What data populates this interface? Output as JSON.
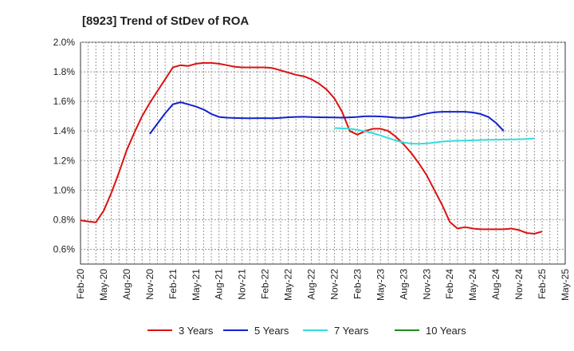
{
  "chart_data": {
    "type": "line",
    "title": "[8923]  Trend of StDev of ROA",
    "xlabel": "",
    "ylabel": "",
    "x_ticks": [
      "Feb-20",
      "May-20",
      "Aug-20",
      "Nov-20",
      "Feb-21",
      "May-21",
      "Aug-21",
      "Nov-21",
      "Feb-22",
      "May-22",
      "Aug-22",
      "Nov-22",
      "Feb-23",
      "May-23",
      "Aug-23",
      "Nov-23",
      "Feb-24",
      "May-24",
      "Aug-24",
      "Nov-24",
      "Feb-25",
      "May-25"
    ],
    "y_ticks": [
      "0.6%",
      "0.8%",
      "1.0%",
      "1.2%",
      "1.4%",
      "1.6%",
      "1.8%",
      "2.0%"
    ],
    "ylim": [
      0.5,
      2.0
    ],
    "grid": true,
    "legend_position": "bottom",
    "series": [
      {
        "name": "3 Years",
        "color": "#dd1111",
        "start_month": 0,
        "values": [
          0.795,
          0.788,
          0.782,
          0.86,
          0.98,
          1.12,
          1.27,
          1.39,
          1.5,
          1.59,
          1.67,
          1.75,
          1.83,
          1.845,
          1.84,
          1.855,
          1.86,
          1.86,
          1.855,
          1.845,
          1.835,
          1.83,
          1.83,
          1.83,
          1.83,
          1.825,
          1.81,
          1.795,
          1.78,
          1.77,
          1.75,
          1.72,
          1.68,
          1.62,
          1.53,
          1.4,
          1.375,
          1.4,
          1.415,
          1.415,
          1.4,
          1.36,
          1.31,
          1.25,
          1.18,
          1.1,
          1.0,
          0.9,
          0.785,
          0.74,
          0.75,
          0.74,
          0.735,
          0.735,
          0.735,
          0.735,
          0.74,
          0.73,
          0.71,
          0.705,
          0.72
        ]
      },
      {
        "name": "5 Years",
        "color": "#1122cc",
        "start_month": 9,
        "values": [
          1.38,
          1.45,
          1.52,
          1.58,
          1.595,
          1.58,
          1.565,
          1.545,
          1.515,
          1.495,
          1.49,
          1.488,
          1.487,
          1.486,
          1.487,
          1.487,
          1.486,
          1.489,
          1.493,
          1.495,
          1.496,
          1.494,
          1.493,
          1.492,
          1.491,
          1.49,
          1.492,
          1.495,
          1.5,
          1.5,
          1.498,
          1.495,
          1.49,
          1.489,
          1.493,
          1.505,
          1.518,
          1.527,
          1.53,
          1.53,
          1.53,
          1.53,
          1.525,
          1.515,
          1.495,
          1.455,
          1.4
        ]
      },
      {
        "name": "7 Years",
        "color": "#33dddd",
        "start_month": 33,
        "values": [
          1.42,
          1.418,
          1.415,
          1.408,
          1.398,
          1.385,
          1.37,
          1.352,
          1.335,
          1.322,
          1.315,
          1.313,
          1.316,
          1.322,
          1.328,
          1.332,
          1.334,
          1.335,
          1.337,
          1.339,
          1.34,
          1.341,
          1.342,
          1.343,
          1.344,
          1.346,
          1.35
        ]
      },
      {
        "name": "10 Years",
        "color": "#228822",
        "start_month": 0,
        "values": []
      }
    ]
  }
}
